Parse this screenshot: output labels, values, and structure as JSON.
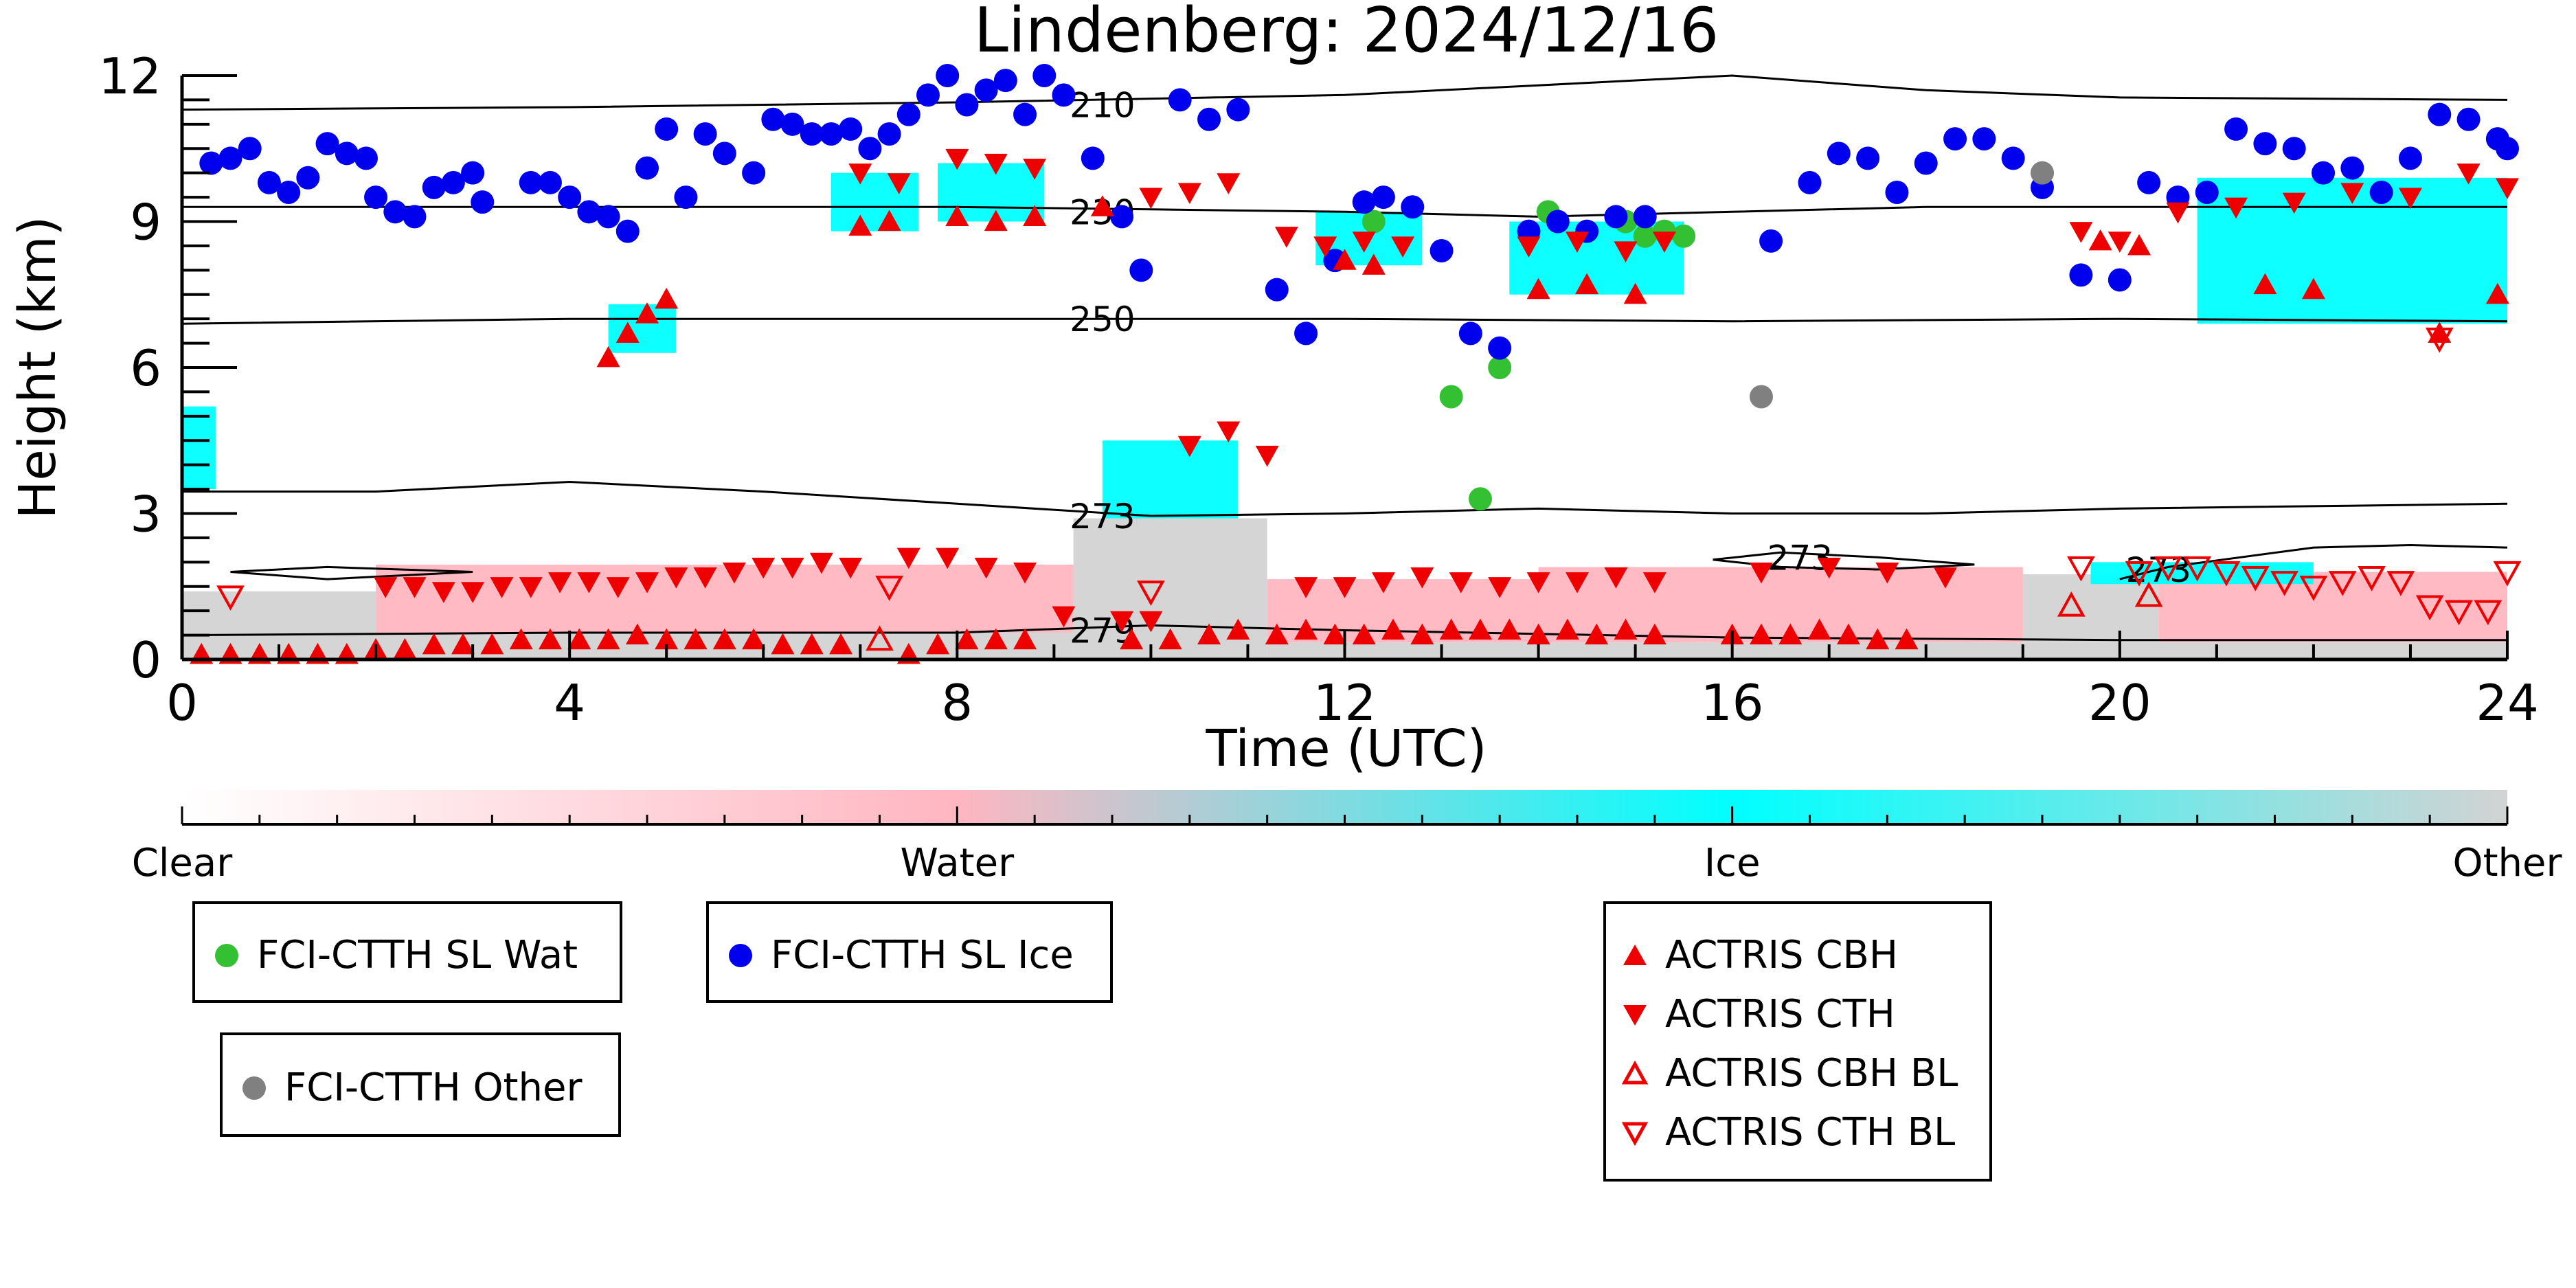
{
  "chart_data": {
    "type": "scatter",
    "title": "Lindenberg: 2024/12/16",
    "xlabel": "Time (UTC)",
    "ylabel": "Height (km)",
    "xlim": [
      0,
      24
    ],
    "ylim": [
      0,
      12
    ],
    "xticks": [
      0,
      4,
      8,
      12,
      16,
      20,
      24
    ],
    "yticks": [
      0,
      3,
      6,
      9,
      12
    ],
    "xtick_labels": [
      "0",
      "4",
      "8",
      "12",
      "16",
      "20",
      "24"
    ],
    "ytick_labels": [
      "0",
      "3",
      "6",
      "9",
      "12"
    ],
    "grid": false,
    "colorbar": {
      "labels": [
        "Clear",
        "Water",
        "Ice",
        "Other"
      ],
      "colors": [
        "#ffffff",
        "#ffb6c1",
        "#00ffff",
        "#d3d3d3"
      ]
    },
    "contours": [
      {
        "label": "210",
        "label_x": 9.5,
        "label_y": 11.4,
        "points": [
          [
            0,
            11.3
          ],
          [
            4,
            11.35
          ],
          [
            8,
            11.45
          ],
          [
            12,
            11.6
          ],
          [
            14,
            11.8
          ],
          [
            16,
            12.0
          ],
          [
            18,
            11.7
          ],
          [
            20,
            11.55
          ],
          [
            24,
            11.5
          ]
        ]
      },
      {
        "label": "230",
        "label_x": 9.5,
        "label_y": 9.2,
        "points": [
          [
            0,
            9.3
          ],
          [
            4,
            9.3
          ],
          [
            8,
            9.3
          ],
          [
            10,
            9.25
          ],
          [
            12,
            9.2
          ],
          [
            14,
            9.1
          ],
          [
            16,
            9.2
          ],
          [
            18,
            9.3
          ],
          [
            20,
            9.3
          ],
          [
            24,
            9.3
          ]
        ]
      },
      {
        "label": "250",
        "label_x": 9.5,
        "label_y": 7.0,
        "points": [
          [
            0,
            6.9
          ],
          [
            4,
            7.0
          ],
          [
            8,
            7.0
          ],
          [
            12,
            7.0
          ],
          [
            16,
            6.95
          ],
          [
            20,
            7.0
          ],
          [
            24,
            6.95
          ]
        ]
      },
      {
        "label": "273",
        "label_x": 9.5,
        "label_y": 2.95,
        "points": [
          [
            0,
            3.45
          ],
          [
            2,
            3.45
          ],
          [
            4,
            3.65
          ],
          [
            6,
            3.45
          ],
          [
            8,
            3.2
          ],
          [
            10,
            2.95
          ],
          [
            12,
            3.0
          ],
          [
            14,
            3.1
          ],
          [
            16,
            3.0
          ],
          [
            18,
            3.0
          ],
          [
            20,
            3.1
          ],
          [
            24,
            3.2
          ]
        ]
      },
      {
        "label": "279",
        "label_x": 9.5,
        "label_y": 0.6,
        "points": [
          [
            0,
            0.5
          ],
          [
            4,
            0.55
          ],
          [
            8,
            0.55
          ],
          [
            10,
            0.7
          ],
          [
            12,
            0.6
          ],
          [
            16,
            0.45
          ],
          [
            20,
            0.4
          ],
          [
            24,
            0.4
          ]
        ]
      },
      {
        "label": "273",
        "label_x": 16.7,
        "label_y": 2.1,
        "points": [
          [
            15.8,
            2.05
          ],
          [
            16.5,
            2.2
          ],
          [
            17.5,
            2.1
          ],
          [
            18.5,
            1.95
          ],
          [
            17.5,
            1.85
          ],
          [
            16.5,
            1.9
          ],
          [
            15.8,
            2.05
          ]
        ]
      },
      {
        "label": "273",
        "label_x": 20.4,
        "label_y": 1.85,
        "points": [
          [
            20.0,
            1.65
          ],
          [
            20.5,
            1.9
          ],
          [
            22.0,
            2.3
          ],
          [
            23.0,
            2.35
          ],
          [
            24,
            2.3
          ]
        ]
      },
      {
        "label": "",
        "label_x": 1.5,
        "label_y": 1.8,
        "points": [
          [
            0.5,
            1.8
          ],
          [
            1.5,
            1.9
          ],
          [
            3.0,
            1.8
          ],
          [
            1.5,
            1.65
          ],
          [
            0.5,
            1.8
          ]
        ]
      }
    ],
    "regions": [
      {
        "class": "Other",
        "x0": 0.0,
        "x1": 9.2,
        "y0": 0.0,
        "y1": 0.55
      },
      {
        "class": "Other",
        "x0": 0.0,
        "x1": 2.0,
        "y0": 0.55,
        "y1": 1.4
      },
      {
        "class": "Water",
        "x0": 2.0,
        "x1": 9.2,
        "y0": 0.55,
        "y1": 1.95
      },
      {
        "class": "Other",
        "x0": 9.2,
        "x1": 11.2,
        "y0": 0.0,
        "y1": 2.9
      },
      {
        "class": "Other",
        "x0": 11.2,
        "x1": 24.0,
        "y0": 0.0,
        "y1": 0.35
      },
      {
        "class": "Water",
        "x0": 11.2,
        "x1": 14.0,
        "y0": 0.35,
        "y1": 1.65
      },
      {
        "class": "Water",
        "x0": 14.0,
        "x1": 19.0,
        "y0": 0.35,
        "y1": 1.9
      },
      {
        "class": "Other",
        "x0": 19.0,
        "x1": 20.4,
        "y0": 0.35,
        "y1": 1.75
      },
      {
        "class": "Water",
        "x0": 20.4,
        "x1": 24.0,
        "y0": 0.35,
        "y1": 1.8
      },
      {
        "class": "Ice",
        "x0": 19.7,
        "x1": 22.0,
        "y0": 1.55,
        "y1": 2.0
      },
      {
        "class": "Ice",
        "x0": 9.5,
        "x1": 10.9,
        "y0": 2.9,
        "y1": 4.5
      },
      {
        "class": "Ice",
        "x0": 4.4,
        "x1": 5.1,
        "y0": 6.3,
        "y1": 7.3
      },
      {
        "class": "Ice",
        "x0": 6.7,
        "x1": 7.6,
        "y0": 8.8,
        "y1": 10.0
      },
      {
        "class": "Ice",
        "x0": 7.8,
        "x1": 8.9,
        "y0": 9.0,
        "y1": 10.2
      },
      {
        "class": "Ice",
        "x0": 11.7,
        "x1": 12.8,
        "y0": 8.1,
        "y1": 9.2
      },
      {
        "class": "Ice",
        "x0": 13.7,
        "x1": 15.5,
        "y0": 7.5,
        "y1": 9.0
      },
      {
        "class": "Ice",
        "x0": 20.8,
        "x1": 24.0,
        "y0": 6.9,
        "y1": 9.9
      },
      {
        "class": "Ice",
        "x0": 0.0,
        "x1": 0.35,
        "y0": 3.5,
        "y1": 5.2
      }
    ],
    "series": [
      {
        "name": "FCI-CTTH SL Wat",
        "marker": "circle",
        "color": "#33c033",
        "x": [
          12.3,
          13.1,
          13.4,
          13.6,
          14.1,
          14.9,
          15.1,
          15.3,
          15.5
        ],
        "y": [
          9.0,
          5.4,
          3.3,
          6.0,
          9.2,
          9.0,
          8.7,
          8.8,
          8.7
        ]
      },
      {
        "name": "FCI-CTTH SL Ice",
        "marker": "circle",
        "color": "#0000ee",
        "x": [
          0.3,
          0.5,
          0.7,
          0.9,
          1.1,
          1.3,
          1.5,
          1.7,
          1.9,
          2.0,
          2.2,
          2.4,
          2.6,
          2.8,
          3.0,
          3.1,
          3.6,
          3.8,
          4.0,
          4.2,
          4.4,
          4.6,
          4.8,
          5.0,
          5.2,
          5.4,
          5.6,
          5.9,
          6.1,
          6.3,
          6.5,
          6.7,
          6.9,
          7.1,
          7.3,
          7.5,
          7.7,
          7.9,
          8.1,
          8.3,
          8.5,
          8.7,
          8.9,
          9.1,
          9.4,
          9.7,
          9.9,
          10.3,
          10.6,
          10.9,
          11.3,
          11.6,
          11.9,
          12.2,
          12.4,
          12.7,
          13.0,
          13.3,
          13.6,
          13.9,
          14.2,
          14.5,
          14.8,
          15.1,
          16.4,
          16.8,
          17.1,
          17.4,
          17.7,
          18.0,
          18.3,
          18.6,
          18.9,
          19.2,
          19.6,
          20.0,
          20.3,
          20.6,
          20.9,
          21.2,
          21.5,
          21.8,
          22.1,
          22.4,
          22.7,
          23.0,
          23.3,
          23.6,
          23.9,
          24.0
        ],
        "y": [
          10.2,
          10.3,
          10.5,
          9.8,
          9.6,
          9.9,
          10.6,
          10.4,
          10.3,
          9.5,
          9.2,
          9.1,
          9.7,
          9.8,
          10.0,
          9.4,
          9.8,
          9.8,
          9.5,
          9.2,
          9.1,
          8.8,
          10.1,
          10.9,
          9.5,
          10.8,
          10.4,
          10.0,
          11.1,
          11.0,
          10.8,
          10.8,
          10.9,
          10.5,
          10.8,
          11.2,
          11.6,
          12.0,
          11.4,
          11.7,
          11.9,
          11.2,
          12.0,
          11.6,
          10.3,
          9.1,
          8.0,
          11.5,
          11.1,
          11.3,
          7.6,
          6.7,
          8.2,
          9.4,
          9.5,
          9.3,
          8.4,
          6.7,
          6.4,
          8.8,
          9.0,
          8.8,
          9.1,
          9.1,
          8.6,
          9.8,
          10.4,
          10.3,
          9.6,
          10.2,
          10.7,
          10.7,
          10.3,
          9.7,
          7.9,
          7.8,
          9.8,
          9.5,
          9.6,
          10.9,
          10.6,
          10.5,
          10.0,
          10.1,
          9.6,
          10.3,
          11.2,
          11.1,
          10.7,
          10.5
        ],
        "x_note_unused": null
      },
      {
        "name": "FCI-CTTH Other",
        "marker": "circle",
        "color": "#808080",
        "x": [
          16.3,
          19.2
        ],
        "y": [
          5.4,
          10.0
        ]
      },
      {
        "name": "ACTRIS CBH",
        "marker": "triangle-up",
        "color": "#ee0000",
        "filled": true,
        "x": [
          0.2,
          0.5,
          0.8,
          1.1,
          1.4,
          1.7,
          2.0,
          2.3,
          2.6,
          2.9,
          3.2,
          3.5,
          3.8,
          4.1,
          4.4,
          4.7,
          5.0,
          5.3,
          5.6,
          5.9,
          6.2,
          6.5,
          6.8,
          7.5,
          7.8,
          8.1,
          8.4,
          8.7,
          9.8,
          10.2,
          10.6,
          10.9,
          11.3,
          11.6,
          11.9,
          12.2,
          12.5,
          12.8,
          13.1,
          13.4,
          13.7,
          14.0,
          14.3,
          14.6,
          14.9,
          15.2,
          16.0,
          16.3,
          16.6,
          16.9,
          17.2,
          17.5,
          17.8,
          4.4,
          4.6,
          4.8,
          5.0,
          7.0,
          7.3,
          8.0,
          8.4,
          8.8,
          9.5,
          12.0,
          12.3,
          14.0,
          14.5,
          15.0,
          19.8,
          20.2,
          21.5,
          22.0,
          23.3,
          23.9
        ],
        "y": [
          0.1,
          0.1,
          0.1,
          0.1,
          0.1,
          0.1,
          0.2,
          0.2,
          0.3,
          0.3,
          0.3,
          0.4,
          0.4,
          0.4,
          0.4,
          0.5,
          0.4,
          0.4,
          0.4,
          0.4,
          0.3,
          0.3,
          0.3,
          0.1,
          0.3,
          0.4,
          0.4,
          0.4,
          0.4,
          0.4,
          0.5,
          0.6,
          0.5,
          0.6,
          0.5,
          0.5,
          0.6,
          0.5,
          0.6,
          0.6,
          0.6,
          0.5,
          0.6,
          0.5,
          0.6,
          0.5,
          0.5,
          0.5,
          0.5,
          0.6,
          0.5,
          0.4,
          0.4,
          6.2,
          6.7,
          7.1,
          7.4,
          8.9,
          9.0,
          9.1,
          9.0,
          9.1,
          9.3,
          8.2,
          8.1,
          7.6,
          7.7,
          7.5,
          8.6,
          8.5,
          7.7,
          7.6,
          6.7,
          7.5
        ]
      },
      {
        "name": "ACTRIS CTH",
        "marker": "triangle-down",
        "color": "#ee0000",
        "filled": true,
        "x": [
          2.1,
          2.4,
          2.7,
          3.0,
          3.3,
          3.6,
          3.9,
          4.2,
          4.5,
          4.8,
          5.1,
          5.4,
          5.7,
          6.0,
          6.3,
          6.6,
          6.9,
          7.5,
          7.9,
          8.3,
          8.7,
          9.1,
          9.7,
          10.0,
          10.4,
          10.8,
          11.2,
          11.6,
          12.0,
          12.4,
          12.8,
          13.2,
          13.6,
          14.0,
          14.4,
          14.8,
          15.2,
          16.3,
          17.0,
          17.6,
          18.2,
          7.0,
          7.4,
          8.0,
          8.4,
          8.8,
          10.0,
          10.4,
          10.8,
          11.4,
          11.8,
          12.2,
          12.6,
          13.9,
          14.4,
          14.9,
          15.3,
          19.6,
          20.0,
          20.6,
          21.2,
          21.8,
          22.4,
          23.0,
          23.6,
          24.0
        ],
        "y": [
          1.5,
          1.5,
          1.4,
          1.4,
          1.5,
          1.5,
          1.6,
          1.6,
          1.5,
          1.6,
          1.7,
          1.7,
          1.8,
          1.9,
          1.9,
          2.0,
          1.9,
          2.1,
          2.1,
          1.9,
          1.8,
          0.9,
          0.8,
          0.8,
          4.4,
          4.7,
          4.2,
          1.5,
          1.5,
          1.6,
          1.7,
          1.6,
          1.5,
          1.6,
          1.6,
          1.7,
          1.6,
          1.8,
          1.9,
          1.8,
          1.7,
          10.0,
          9.8,
          10.3,
          10.2,
          10.1,
          9.5,
          9.6,
          9.8,
          8.7,
          8.5,
          8.6,
          8.5,
          8.5,
          8.6,
          8.4,
          8.6,
          8.8,
          8.6,
          9.2,
          9.3,
          9.4,
          9.6,
          9.5,
          10.0,
          9.7
        ]
      },
      {
        "name": "ACTRIS CBH BL",
        "marker": "triangle-up",
        "color": "#ee0000",
        "filled": false,
        "x": [
          7.2,
          19.5,
          20.3
        ],
        "y": [
          0.4,
          1.1,
          1.3
        ]
      },
      {
        "name": "ACTRIS CTH BL",
        "marker": "triangle-down",
        "color": "#ee0000",
        "filled": false,
        "x": [
          0.5,
          7.3,
          10.0,
          19.6,
          20.2,
          20.5,
          20.8,
          21.1,
          21.4,
          21.7,
          22.0,
          22.3,
          22.6,
          22.9,
          23.2,
          23.5,
          23.8,
          24.0,
          23.3
        ],
        "y": [
          1.3,
          1.5,
          1.4,
          1.9,
          1.8,
          1.9,
          1.9,
          1.8,
          1.7,
          1.6,
          1.5,
          1.6,
          1.7,
          1.6,
          1.1,
          1.0,
          1.0,
          1.8,
          6.6
        ]
      }
    ],
    "legends": [
      {
        "entries": [
          "FCI-CTTH SL Wat"
        ]
      },
      {
        "entries": [
          "FCI-CTTH SL Ice"
        ]
      },
      {
        "entries": [
          "FCI-CTTH Other"
        ]
      },
      {
        "entries": [
          "ACTRIS CBH",
          "ACTRIS CTH",
          "ACTRIS CBH BL",
          "ACTRIS CTH BL"
        ]
      }
    ]
  }
}
